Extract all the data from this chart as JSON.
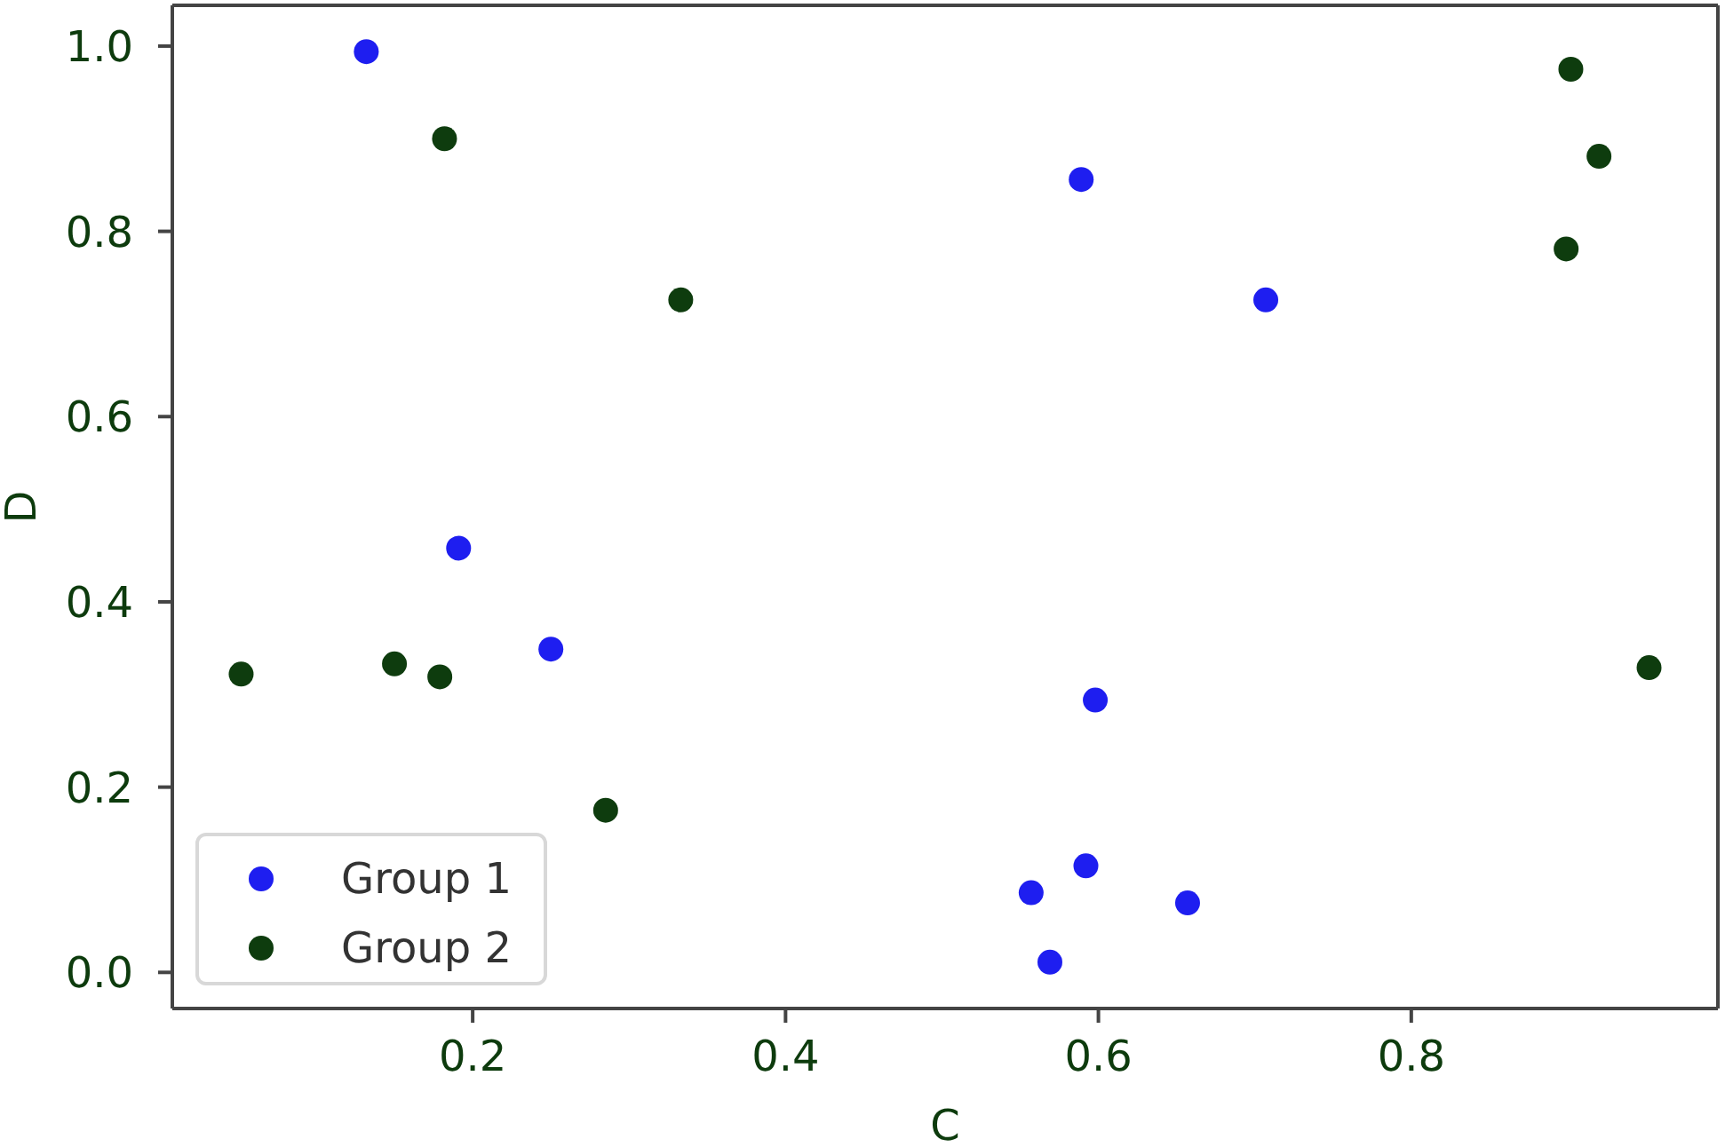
{
  "chart_data": {
    "type": "scatter",
    "xlabel": "C",
    "ylabel": "D",
    "xlim": [
      0.008,
      0.996
    ],
    "ylim": [
      -0.039,
      1.044
    ],
    "xticks": [
      0.2,
      0.4,
      0.6,
      0.8
    ],
    "yticks": [
      {
        "value": 0,
        "label": "0.0"
      },
      0.2,
      0.4,
      0.6,
      0.8,
      {
        "value": 1,
        "label": "1.0"
      }
    ],
    "legend": "bottom left",
    "marker": "circle",
    "series": [
      {
        "name": "Group 1",
        "color": "#1e1ef0",
        "x": [
          0.132,
          0.191,
          0.25,
          0.589,
          0.707,
          0.598,
          0.592,
          0.557,
          0.657,
          0.569
        ],
        "values": [
          0.994,
          0.458,
          0.349,
          0.856,
          0.726,
          0.294,
          0.115,
          0.086,
          0.075,
          0.011
        ]
      },
      {
        "name": "Group 2",
        "color": "#0e3c0e",
        "x": [
          0.182,
          0.333,
          0.902,
          0.92,
          0.899,
          0.952,
          0.052,
          0.15,
          0.179,
          0.285
        ],
        "values": [
          0.9,
          0.726,
          0.975,
          0.881,
          0.781,
          0.329,
          0.322,
          0.333,
          0.319,
          0.175
        ]
      }
    ]
  }
}
